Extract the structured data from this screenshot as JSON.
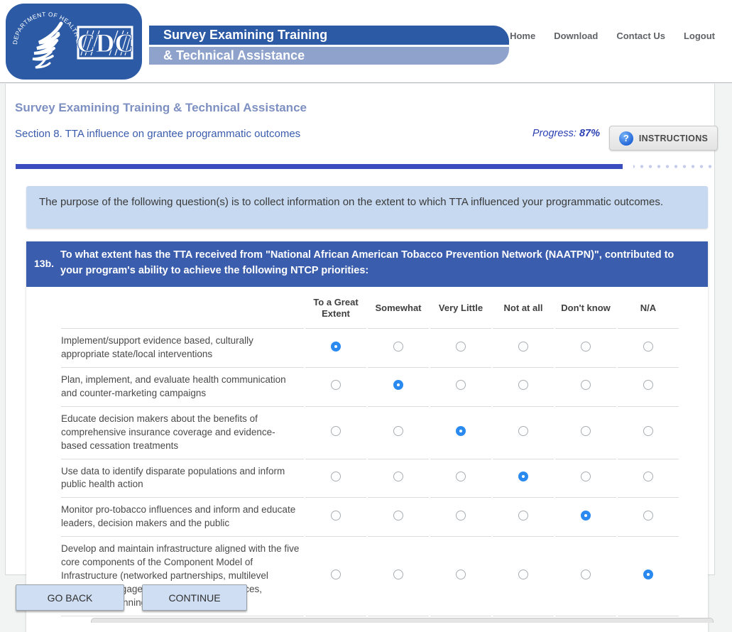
{
  "header": {
    "logo": {
      "cdc_text": "CDC",
      "seal_text": "DEPARTMENT OF HEALTH & HUMAN SERVICES·USA"
    },
    "banner_line1": "Survey Examining Training",
    "banner_line2": "& Technical Assistance",
    "nav": [
      {
        "label": "Home"
      },
      {
        "label": "Download"
      },
      {
        "label": "Contact Us"
      },
      {
        "label": "Logout"
      }
    ]
  },
  "page": {
    "title": "Survey Examining Training & Technical Assistance",
    "section": "Section 8. TTA influence on grantee programmatic outcomes",
    "progress_label": "Progress:",
    "progress_value": "87%",
    "progress_percent": 87,
    "instructions_label": "INSTRUCTIONS",
    "instructions_icon": "?"
  },
  "info_box": {
    "text": "The purpose of the following question(s) is to collect information on the extent to which TTA influenced your programmatic outcomes."
  },
  "question": {
    "number": "13b.",
    "text": "To what extent has the TTA received from \"National African American Tobacco Prevention Network (NAATPN)\", contributed to your program's ability to achieve the following NTCP priorities:",
    "columns": [
      "To a Great Extent",
      "Somewhat",
      "Very Little",
      "Not at all",
      "Don't know",
      "N/A"
    ],
    "rows": [
      {
        "label": "Implement/support evidence based, culturally appropriate state/local interventions",
        "selected": 0
      },
      {
        "label": "Plan, implement, and evaluate health communication and counter-marketing campaigns",
        "selected": 1
      },
      {
        "label": "Educate decision makers about the benefits of comprehensive insurance coverage and evidence-based cessation treatments",
        "selected": 2
      },
      {
        "label": "Use data to identify disparate populations and inform public health action",
        "selected": 3
      },
      {
        "label": "Monitor pro-tobacco influences and inform and educate leaders, decision makers and the public",
        "selected": 4
      },
      {
        "label": "Develop and maintain infrastructure aligned with the five core components of the Component Model of Infrastructure (networked partnerships, multilevel leadership, engaged data, managed resources, responsive planning)",
        "selected": 5
      }
    ]
  },
  "buttons": {
    "go_back": "GO BACK",
    "continue": "CONTINUE"
  },
  "colors": {
    "cdc_blue": "#2c5aa5",
    "banner_light": "#8ea2cc",
    "question_header": "#3a5dad",
    "info_box_bg": "#c6d9f0",
    "progress_fill": "#3a4cbe",
    "radio_selected": "#2a8af0",
    "title_text": "#7e90c1",
    "section_text": "#3a5cad"
  }
}
